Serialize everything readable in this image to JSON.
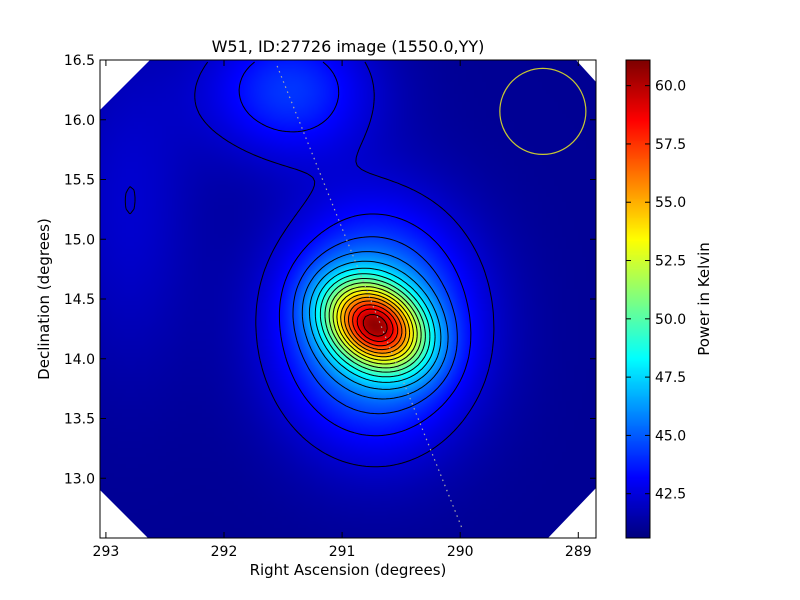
{
  "chart_data": {
    "type": "heatmap",
    "title": "W51, ID:27726 image (1550.0,YY)",
    "xlabel": "Right Ascension (degrees)",
    "ylabel": "Declination (degrees)",
    "xlim": [
      293.05,
      288.85
    ],
    "ylim": [
      12.5,
      16.5
    ],
    "x_inverted": true,
    "x_ticks": [
      {
        "value": 293,
        "label": "293"
      },
      {
        "value": 292,
        "label": "292"
      },
      {
        "value": 291,
        "label": "291"
      },
      {
        "value": 290,
        "label": "290"
      },
      {
        "value": 289,
        "label": "289"
      }
    ],
    "y_ticks": [
      {
        "value": 13.0,
        "label": "13.0"
      },
      {
        "value": 13.5,
        "label": "13.5"
      },
      {
        "value": 14.0,
        "label": "14.0"
      },
      {
        "value": 14.5,
        "label": "14.5"
      },
      {
        "value": 15.0,
        "label": "15.0"
      },
      {
        "value": 15.5,
        "label": "15.5"
      },
      {
        "value": 16.0,
        "label": "16.0"
      },
      {
        "value": 16.5,
        "label": "16.5"
      }
    ],
    "colormap": "jet",
    "colorbar": {
      "label": "Power in Kelvin",
      "min": 40.6,
      "max": 61.1,
      "ticks": [
        {
          "value": 42.5,
          "label": "42.5"
        },
        {
          "value": 45.0,
          "label": "45.0"
        },
        {
          "value": 47.5,
          "label": "47.5"
        },
        {
          "value": 50.0,
          "label": "50.0"
        },
        {
          "value": 52.5,
          "label": "52.5"
        },
        {
          "value": 55.0,
          "label": "55.0"
        },
        {
          "value": 57.5,
          "label": "57.5"
        },
        {
          "value": 60.0,
          "label": "60.0"
        }
      ]
    },
    "peak": {
      "ra": 290.72,
      "dec": 14.28,
      "value": 61.0
    },
    "background_level": 41.0,
    "contours": "black lines, approx. 1.1 K spacing",
    "beam_marker": {
      "ra": 289.3,
      "dec": 16.07,
      "radius_deg": 0.36,
      "color": "#c8c832"
    },
    "galactic_plane": {
      "from": {
        "ra": 291.55,
        "dec": 16.45
      },
      "to": {
        "ra": 289.98,
        "dec": 12.57
      },
      "style": "dotted",
      "color": "#aaaaaa"
    },
    "grid": false
  }
}
